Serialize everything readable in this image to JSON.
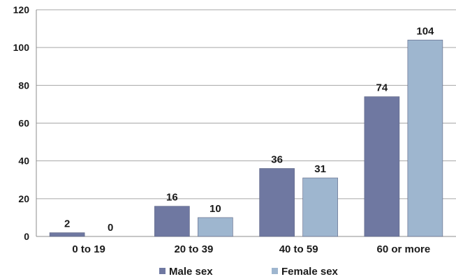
{
  "chart_data": {
    "type": "bar",
    "title": "",
    "xlabel": "",
    "ylabel": "",
    "categories": [
      "0 to 19",
      "20 to 39",
      "40 to 59",
      "60 or more"
    ],
    "series": [
      {
        "name": "Male sex",
        "values": [
          2,
          16,
          36,
          74
        ],
        "color": "#6f78a1"
      },
      {
        "name": "Female sex",
        "values": [
          0,
          10,
          31,
          104
        ],
        "color": "#9eb6cf"
      }
    ],
    "ylim": [
      0,
      120
    ],
    "yticks": [
      0,
      20,
      40,
      60,
      80,
      100,
      120
    ],
    "grid": true,
    "legend": "bottom"
  }
}
